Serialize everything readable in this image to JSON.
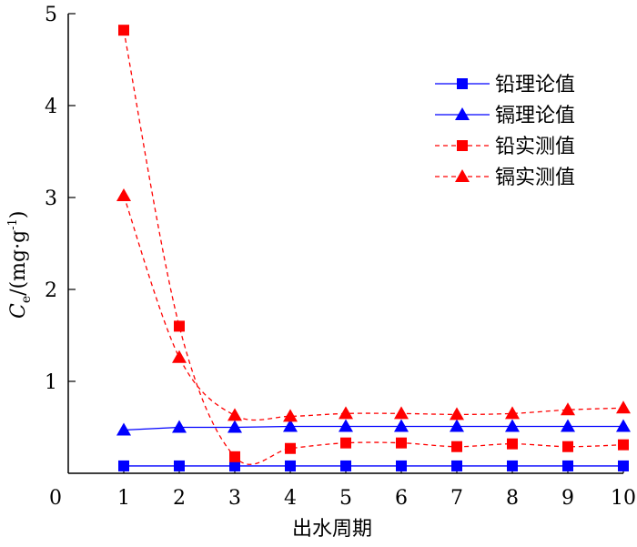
{
  "chart_data": {
    "type": "line",
    "xlabel": "出水周期",
    "ylabel": {
      "symbol": "C",
      "subscript": "e",
      "unit": "/(mg·g",
      "superscript": "-1",
      "close": ")"
    },
    "xlim": [
      0,
      10
    ],
    "ylim": [
      0,
      5
    ],
    "x_ticks": [
      "0",
      "1",
      "2",
      "3",
      "4",
      "5",
      "6",
      "7",
      "8",
      "9",
      "10"
    ],
    "y_ticks": [
      "1",
      "2",
      "3",
      "4",
      "5"
    ],
    "grid": false,
    "legend_position": "top-right",
    "series": [
      {
        "name": "铅理论值",
        "color": "#0000ff",
        "marker": "square",
        "line_style": "solid",
        "x": [
          1,
          2,
          3,
          4,
          5,
          6,
          7,
          8,
          9,
          10
        ],
        "y": [
          0.08,
          0.08,
          0.08,
          0.08,
          0.08,
          0.08,
          0.08,
          0.08,
          0.08,
          0.08
        ]
      },
      {
        "name": "镉理论值",
        "color": "#0000ff",
        "marker": "triangle",
        "line_style": "solid",
        "x": [
          1,
          2,
          3,
          4,
          5,
          6,
          7,
          8,
          9,
          10
        ],
        "y": [
          0.47,
          0.5,
          0.5,
          0.51,
          0.51,
          0.51,
          0.51,
          0.51,
          0.51,
          0.51
        ]
      },
      {
        "name": "铅实测值",
        "color": "#ff0000",
        "marker": "square",
        "line_style": "dashed",
        "x": [
          1,
          2,
          3,
          4,
          5,
          6,
          7,
          8,
          9,
          10
        ],
        "y": [
          4.82,
          1.6,
          0.18,
          0.27,
          0.33,
          0.33,
          0.29,
          0.32,
          0.29,
          0.31
        ]
      },
      {
        "name": "镉实测值",
        "color": "#ff0000",
        "marker": "triangle",
        "line_style": "dashed",
        "x": [
          1,
          2,
          3,
          4,
          5,
          6,
          7,
          8,
          9,
          10
        ],
        "y": [
          3.02,
          1.26,
          0.63,
          0.62,
          0.65,
          0.65,
          0.64,
          0.65,
          0.69,
          0.71
        ]
      }
    ]
  }
}
